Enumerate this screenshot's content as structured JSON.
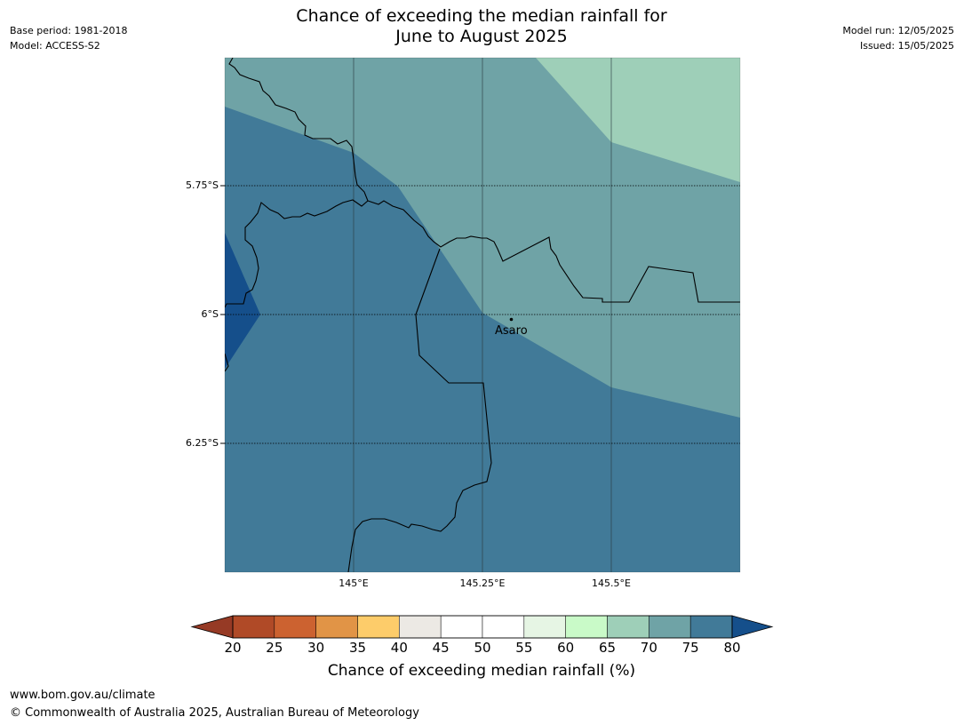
{
  "title_line1": "Chance of exceeding the median rainfall for",
  "title_line2": "June to August 2025",
  "meta_left": {
    "base_period": "Base period: 1981-2018",
    "model": "Model: ACCESS-S2"
  },
  "meta_right": {
    "model_run": "Model run: 12/05/2025",
    "issued": "Issued: 15/05/2025"
  },
  "map": {
    "lat_labels": [
      "5.75°S",
      "6°S",
      "6.25°S"
    ],
    "lon_labels": [
      "145°E",
      "145.25°E",
      "145.5°E"
    ],
    "place": "Asaro"
  },
  "colorbar": {
    "title": "Chance of exceeding median rainfall (%)",
    "ticks": [
      "20",
      "25",
      "30",
      "35",
      "40",
      "45",
      "50",
      "55",
      "60",
      "65",
      "70",
      "75",
      "80"
    ],
    "colors": [
      "#b04a27",
      "#cc6230",
      "#e19446",
      "#fdcc6a",
      "#ece9e4",
      "#ffffff",
      "#ffffff",
      "#e6f5e4",
      "#c9fac8",
      "#9ecfb8",
      "#6fa3a6",
      "#417a98"
    ],
    "under_color": "#963a25",
    "over_color": "#154f8b"
  },
  "footer": {
    "url": "www.bom.gov.au/climate",
    "copyright": "© Commonwealth of Australia 2025, Australian Bureau of Meteorology"
  }
}
